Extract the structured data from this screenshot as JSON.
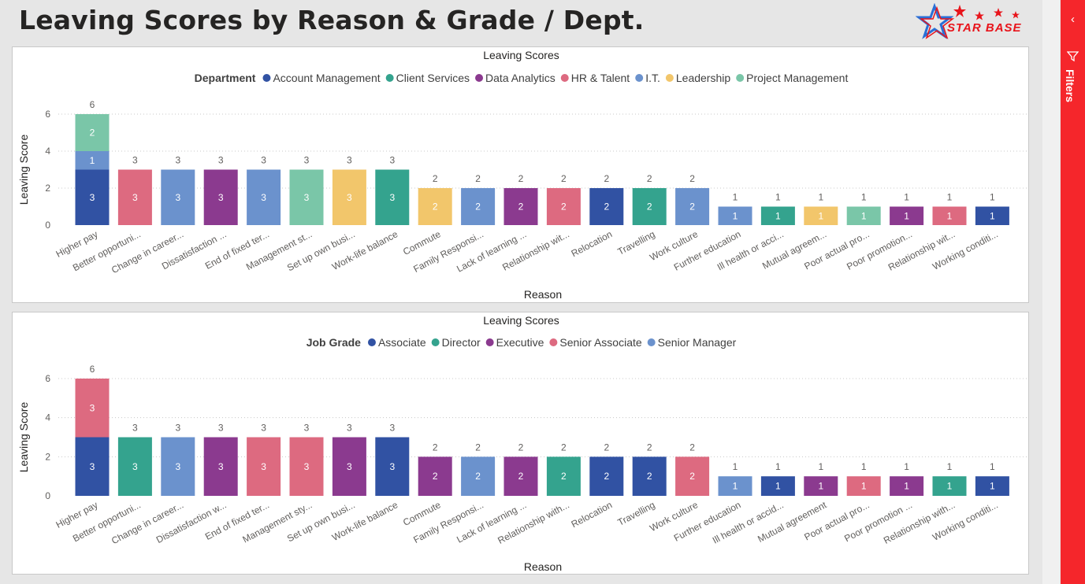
{
  "page": {
    "title": "Leaving Scores by Reason & Grade / Dept."
  },
  "logo": {
    "text": "STAR BASE",
    "color": "#e8141b"
  },
  "filters": {
    "label": "Filters",
    "collapse_glyph": "‹",
    "color": "#f5262b",
    "icon": "filter-funnel-icon"
  },
  "chart_data": [
    {
      "type": "bar",
      "stacked": true,
      "title": "Leaving Scores",
      "legend_title": "Department",
      "legend_position": "top-center",
      "xlabel": "Reason",
      "ylabel": "Leaving Score",
      "ylim": [
        0,
        6
      ],
      "yticks": [
        0,
        2,
        4,
        6
      ],
      "grid": true,
      "categories": [
        "Higher pay",
        "Better opportuni...",
        "Change in career...",
        "Dissatisfaction ...",
        "End of fixed ter...",
        "Management st...",
        "Set up own busi...",
        "Work-life balance",
        "Commute",
        "Family Responsi...",
        "Lack of learning ...",
        "Relationship wit...",
        "Relocation",
        "Travelling",
        "Work culture",
        "Further education",
        "Ill health or acci...",
        "Mutual agreem...",
        "Poor actual pro...",
        "Poor promotion...",
        "Relationship wit...",
        "Working conditi..."
      ],
      "totals": [
        6,
        3,
        3,
        3,
        3,
        3,
        3,
        3,
        2,
        2,
        2,
        2,
        2,
        2,
        2,
        1,
        1,
        1,
        1,
        1,
        1,
        1
      ],
      "series": [
        {
          "name": "Account Management",
          "color": "#3152a3",
          "values": [
            3,
            0,
            0,
            0,
            0,
            0,
            0,
            0,
            0,
            0,
            0,
            0,
            2,
            0,
            0,
            0,
            0,
            0,
            0,
            0,
            0,
            1
          ]
        },
        {
          "name": "Client Services",
          "color": "#34a38e",
          "values": [
            0,
            0,
            0,
            0,
            0,
            0,
            0,
            3,
            0,
            0,
            0,
            0,
            0,
            2,
            0,
            0,
            1,
            0,
            0,
            0,
            0,
            0
          ]
        },
        {
          "name": "Data Analytics",
          "color": "#8b3a8f",
          "values": [
            0,
            0,
            0,
            3,
            0,
            0,
            0,
            0,
            0,
            0,
            2,
            0,
            0,
            0,
            0,
            0,
            0,
            0,
            0,
            1,
            0,
            0
          ]
        },
        {
          "name": "HR & Talent",
          "color": "#dd6a80",
          "values": [
            0,
            3,
            0,
            0,
            0,
            0,
            0,
            0,
            0,
            0,
            0,
            2,
            0,
            0,
            0,
            0,
            0,
            0,
            0,
            0,
            1,
            0
          ]
        },
        {
          "name": "I.T.",
          "color": "#6b92cd",
          "values": [
            1,
            0,
            3,
            0,
            3,
            0,
            0,
            0,
            0,
            2,
            0,
            0,
            0,
            0,
            2,
            1,
            0,
            0,
            0,
            0,
            0,
            0
          ]
        },
        {
          "name": "Leadership",
          "color": "#f2c66b",
          "values": [
            0,
            0,
            0,
            0,
            0,
            0,
            3,
            0,
            2,
            0,
            0,
            0,
            0,
            0,
            0,
            0,
            0,
            1,
            0,
            0,
            0,
            0
          ]
        },
        {
          "name": "Project Management",
          "color": "#7ac6a8",
          "values": [
            2,
            0,
            0,
            0,
            0,
            3,
            0,
            0,
            0,
            0,
            0,
            0,
            0,
            0,
            0,
            0,
            0,
            0,
            1,
            0,
            0,
            0
          ]
        }
      ]
    },
    {
      "type": "bar",
      "stacked": true,
      "title": "Leaving Scores",
      "legend_title": "Job Grade",
      "legend_position": "top-center",
      "xlabel": "Reason",
      "ylabel": "Leaving Score",
      "ylim": [
        0,
        6
      ],
      "yticks": [
        0,
        2,
        4,
        6
      ],
      "grid": true,
      "categories": [
        "Higher pay",
        "Better opportuni...",
        "Change in career...",
        "Dissatisfaction w...",
        "End of fixed ter...",
        "Management sty...",
        "Set up own busi...",
        "Work-life balance",
        "Commute",
        "Family Responsi...",
        "Lack of learning ...",
        "Relationship with...",
        "Relocation",
        "Travelling",
        "Work culture",
        "Further education",
        "Ill health or accid...",
        "Mutual agreement",
        "Poor actual pro...",
        "Poor promotion ...",
        "Relationship with...",
        "Working conditi..."
      ],
      "totals": [
        6,
        3,
        3,
        3,
        3,
        3,
        3,
        3,
        2,
        2,
        2,
        2,
        2,
        2,
        2,
        1,
        1,
        1,
        1,
        1,
        1,
        1
      ],
      "series": [
        {
          "name": "Associate",
          "color": "#3152a3",
          "values": [
            3,
            0,
            0,
            0,
            0,
            0,
            0,
            3,
            0,
            0,
            0,
            0,
            2,
            2,
            0,
            0,
            1,
            0,
            0,
            0,
            0,
            1
          ]
        },
        {
          "name": "Director",
          "color": "#34a38e",
          "values": [
            0,
            3,
            0,
            0,
            0,
            0,
            0,
            0,
            0,
            0,
            0,
            2,
            0,
            0,
            0,
            0,
            0,
            0,
            0,
            0,
            1,
            0
          ]
        },
        {
          "name": "Executive",
          "color": "#8b3a8f",
          "values": [
            0,
            0,
            0,
            3,
            0,
            0,
            3,
            0,
            2,
            0,
            2,
            0,
            0,
            0,
            0,
            0,
            0,
            1,
            0,
            1,
            0,
            0
          ]
        },
        {
          "name": "Senior Associate",
          "color": "#dd6a80",
          "values": [
            3,
            0,
            0,
            0,
            3,
            3,
            0,
            0,
            0,
            0,
            0,
            0,
            0,
            0,
            2,
            0,
            0,
            0,
            1,
            0,
            0,
            0
          ]
        },
        {
          "name": "Senior Manager",
          "color": "#6b92cd",
          "values": [
            0,
            0,
            3,
            0,
            0,
            0,
            0,
            0,
            0,
            2,
            0,
            0,
            0,
            0,
            0,
            1,
            0,
            0,
            0,
            0,
            0,
            0
          ]
        }
      ]
    }
  ]
}
